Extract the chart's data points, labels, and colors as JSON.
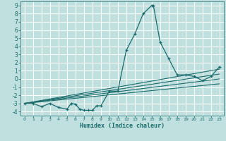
{
  "xlabel": "Humidex (Indice chaleur)",
  "bg_color": "#c0e0e0",
  "grid_color": "#ffffff",
  "line_color": "#1a6b6b",
  "xlim": [
    -0.5,
    23.5
  ],
  "ylim": [
    -4.5,
    9.5
  ],
  "xticks": [
    0,
    1,
    2,
    3,
    4,
    5,
    6,
    7,
    8,
    9,
    10,
    11,
    12,
    13,
    14,
    15,
    16,
    17,
    18,
    19,
    20,
    21,
    22,
    23
  ],
  "yticks": [
    -4,
    -3,
    -2,
    -1,
    0,
    1,
    2,
    3,
    4,
    5,
    6,
    7,
    8,
    9
  ],
  "series": [
    [
      0,
      -3
    ],
    [
      1,
      -3
    ],
    [
      2,
      -3.4
    ],
    [
      3,
      -3
    ],
    [
      4,
      -3.5
    ],
    [
      5,
      -3.7
    ],
    [
      5.5,
      -3.0
    ],
    [
      6,
      -3.1
    ],
    [
      6.5,
      -3.7
    ],
    [
      7,
      -3.85
    ],
    [
      7.5,
      -3.85
    ],
    [
      8,
      -3.85
    ],
    [
      8.5,
      -3.3
    ],
    [
      9,
      -3.3
    ],
    [
      10,
      -1.5
    ],
    [
      11,
      -1.5
    ],
    [
      12,
      3.5
    ],
    [
      13,
      5.5
    ],
    [
      14,
      8.0
    ],
    [
      15,
      9.0
    ],
    [
      15.2,
      9.0
    ],
    [
      16,
      4.5
    ],
    [
      17,
      2.5
    ],
    [
      18,
      0.5
    ],
    [
      19,
      0.5
    ],
    [
      20,
      0.3
    ],
    [
      21,
      -0.2
    ],
    [
      22,
      0.3
    ],
    [
      23,
      1.5
    ]
  ],
  "linear_lines": [
    {
      "x": [
        0,
        23
      ],
      "y": [
        -3.0,
        1.2
      ]
    },
    {
      "x": [
        0,
        23
      ],
      "y": [
        -3.0,
        0.6
      ]
    },
    {
      "x": [
        0,
        23
      ],
      "y": [
        -3.0,
        0.0
      ]
    },
    {
      "x": [
        0,
        23
      ],
      "y": [
        -3.0,
        -0.6
      ]
    }
  ],
  "xlabel_fontsize": 6,
  "tick_fontsize_x": 4.5,
  "tick_fontsize_y": 5.5
}
